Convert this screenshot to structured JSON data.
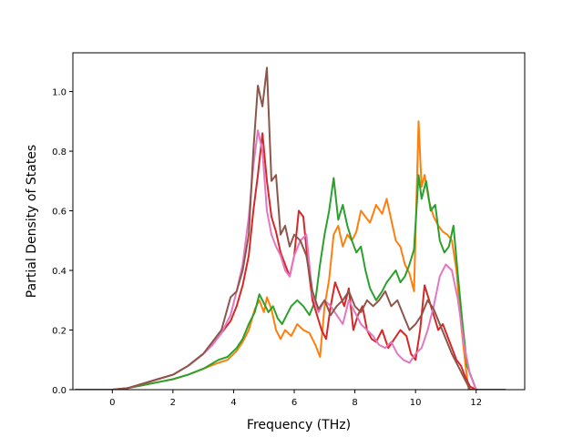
{
  "chart_data": {
    "type": "line",
    "title": "",
    "xlabel": "Frequency (THz)",
    "ylabel": "Partial Density of States",
    "xlim": [
      -1.3,
      13.6
    ],
    "ylim": [
      0.0,
      1.13
    ],
    "xticks": [
      0,
      2,
      4,
      6,
      8,
      10,
      12
    ],
    "xtick_labels": [
      "0",
      "2",
      "4",
      "6",
      "8",
      "10",
      "12"
    ],
    "yticks": [
      0.0,
      0.2,
      0.4,
      0.6,
      0.8,
      1.0
    ],
    "ytick_labels": [
      "0.0",
      "0.2",
      "0.4",
      "0.6",
      "0.8",
      "1.0"
    ],
    "grid": false,
    "legend": "none",
    "series": [
      {
        "color": "#ff7f0e",
        "x": [
          -1.2,
          0.0,
          0.5,
          1.0,
          1.5,
          2.0,
          2.5,
          3.0,
          3.5,
          3.8,
          4.1,
          4.3,
          4.5,
          4.7,
          4.85,
          5.0,
          5.1,
          5.25,
          5.4,
          5.55,
          5.7,
          5.9,
          6.1,
          6.3,
          6.5,
          6.7,
          6.85,
          7.0,
          7.15,
          7.3,
          7.45,
          7.6,
          7.75,
          7.9,
          8.05,
          8.2,
          8.35,
          8.5,
          8.7,
          8.9,
          9.05,
          9.2,
          9.35,
          9.5,
          9.65,
          9.8,
          9.95,
          10.1,
          10.2,
          10.3,
          10.45,
          10.6,
          10.75,
          10.9,
          11.05,
          11.2,
          11.35,
          11.5,
          11.65,
          11.75,
          12.0,
          12.95
        ],
        "y": [
          0.0,
          0.0,
          0.005,
          0.015,
          0.025,
          0.035,
          0.05,
          0.07,
          0.09,
          0.1,
          0.13,
          0.16,
          0.2,
          0.27,
          0.3,
          0.26,
          0.31,
          0.27,
          0.2,
          0.17,
          0.2,
          0.18,
          0.22,
          0.2,
          0.19,
          0.15,
          0.11,
          0.28,
          0.37,
          0.52,
          0.55,
          0.48,
          0.52,
          0.5,
          0.53,
          0.6,
          0.58,
          0.56,
          0.62,
          0.59,
          0.64,
          0.57,
          0.5,
          0.48,
          0.42,
          0.39,
          0.33,
          0.9,
          0.68,
          0.72,
          0.63,
          0.58,
          0.55,
          0.53,
          0.52,
          0.5,
          0.4,
          0.22,
          0.08,
          0.0,
          0.0,
          0.0
        ]
      },
      {
        "color": "#2ca02c",
        "x": [
          -1.2,
          0.0,
          0.5,
          1.0,
          1.5,
          2.0,
          2.5,
          3.0,
          3.5,
          3.8,
          4.1,
          4.3,
          4.5,
          4.7,
          4.85,
          5.0,
          5.15,
          5.3,
          5.45,
          5.6,
          5.75,
          5.9,
          6.1,
          6.3,
          6.5,
          6.7,
          6.85,
          7.0,
          7.15,
          7.3,
          7.45,
          7.6,
          7.75,
          7.9,
          8.05,
          8.2,
          8.35,
          8.5,
          8.7,
          8.9,
          9.05,
          9.2,
          9.35,
          9.5,
          9.65,
          9.8,
          9.95,
          10.1,
          10.2,
          10.35,
          10.5,
          10.65,
          10.8,
          10.95,
          11.1,
          11.25,
          11.4,
          11.55,
          11.7,
          12.0,
          12.95
        ],
        "y": [
          0.0,
          0.0,
          0.005,
          0.015,
          0.025,
          0.035,
          0.05,
          0.07,
          0.1,
          0.11,
          0.14,
          0.17,
          0.22,
          0.26,
          0.32,
          0.29,
          0.26,
          0.28,
          0.24,
          0.22,
          0.25,
          0.28,
          0.3,
          0.28,
          0.25,
          0.3,
          0.42,
          0.52,
          0.6,
          0.71,
          0.57,
          0.62,
          0.55,
          0.5,
          0.46,
          0.48,
          0.4,
          0.34,
          0.3,
          0.33,
          0.36,
          0.38,
          0.4,
          0.36,
          0.38,
          0.42,
          0.47,
          0.72,
          0.64,
          0.7,
          0.6,
          0.62,
          0.5,
          0.46,
          0.48,
          0.55,
          0.38,
          0.22,
          0.08,
          0.0,
          0.0
        ]
      },
      {
        "color": "#d62728",
        "x": [
          -1.2,
          0.0,
          0.5,
          1.0,
          1.5,
          2.0,
          2.5,
          3.0,
          3.3,
          3.6,
          3.9,
          4.1,
          4.3,
          4.5,
          4.65,
          4.8,
          4.95,
          5.1,
          5.25,
          5.4,
          5.55,
          5.7,
          5.85,
          6.0,
          6.15,
          6.3,
          6.45,
          6.6,
          6.75,
          6.9,
          7.05,
          7.2,
          7.35,
          7.5,
          7.65,
          7.8,
          7.95,
          8.1,
          8.25,
          8.4,
          8.55,
          8.7,
          8.9,
          9.1,
          9.3,
          9.5,
          9.7,
          9.85,
          10.0,
          10.15,
          10.3,
          10.45,
          10.6,
          10.75,
          10.9,
          11.05,
          11.2,
          11.35,
          11.5,
          11.65,
          11.8,
          12.0,
          12.95
        ],
        "y": [
          0.0,
          0.0,
          0.005,
          0.02,
          0.035,
          0.05,
          0.08,
          0.12,
          0.15,
          0.19,
          0.23,
          0.28,
          0.35,
          0.45,
          0.6,
          0.72,
          0.86,
          0.7,
          0.58,
          0.53,
          0.46,
          0.42,
          0.38,
          0.45,
          0.6,
          0.58,
          0.42,
          0.3,
          0.25,
          0.2,
          0.17,
          0.28,
          0.36,
          0.32,
          0.28,
          0.34,
          0.2,
          0.25,
          0.28,
          0.2,
          0.17,
          0.16,
          0.2,
          0.14,
          0.17,
          0.2,
          0.18,
          0.12,
          0.1,
          0.2,
          0.35,
          0.3,
          0.25,
          0.2,
          0.22,
          0.18,
          0.14,
          0.1,
          0.08,
          0.04,
          0.01,
          0.0,
          0.0
        ]
      },
      {
        "color": "#e377c2",
        "x": [
          -1.2,
          0.0,
          0.5,
          1.0,
          1.5,
          2.0,
          2.5,
          3.0,
          3.3,
          3.6,
          3.9,
          4.1,
          4.3,
          4.5,
          4.65,
          4.8,
          4.95,
          5.1,
          5.25,
          5.4,
          5.55,
          5.7,
          5.85,
          6.0,
          6.2,
          6.4,
          6.6,
          6.8,
          7.0,
          7.2,
          7.4,
          7.6,
          7.8,
          8.0,
          8.2,
          8.4,
          8.6,
          8.8,
          9.0,
          9.2,
          9.4,
          9.6,
          9.8,
          10.0,
          10.2,
          10.4,
          10.6,
          10.8,
          11.0,
          11.2,
          11.4,
          11.6,
          11.8,
          12.0,
          12.95
        ],
        "y": [
          0.0,
          0.0,
          0.005,
          0.02,
          0.035,
          0.05,
          0.08,
          0.12,
          0.15,
          0.19,
          0.25,
          0.33,
          0.42,
          0.58,
          0.75,
          0.87,
          0.8,
          0.6,
          0.52,
          0.48,
          0.45,
          0.4,
          0.38,
          0.45,
          0.5,
          0.52,
          0.32,
          0.26,
          0.3,
          0.28,
          0.25,
          0.22,
          0.3,
          0.26,
          0.22,
          0.2,
          0.18,
          0.15,
          0.14,
          0.16,
          0.12,
          0.1,
          0.09,
          0.12,
          0.14,
          0.2,
          0.28,
          0.38,
          0.42,
          0.4,
          0.3,
          0.15,
          0.05,
          0.0,
          0.0
        ]
      },
      {
        "color": "#8c564b",
        "x": [
          -1.2,
          0.0,
          0.5,
          1.0,
          1.5,
          2.0,
          2.5,
          3.0,
          3.3,
          3.6,
          3.9,
          4.1,
          4.3,
          4.5,
          4.65,
          4.8,
          4.95,
          5.1,
          5.25,
          5.4,
          5.55,
          5.7,
          5.85,
          6.0,
          6.2,
          6.4,
          6.6,
          6.8,
          7.0,
          7.2,
          7.4,
          7.6,
          7.8,
          8.0,
          8.2,
          8.4,
          8.6,
          8.8,
          9.0,
          9.2,
          9.4,
          9.6,
          9.8,
          10.0,
          10.2,
          10.4,
          10.6,
          10.8,
          11.0,
          11.2,
          11.4,
          11.6,
          11.8,
          12.0,
          12.95
        ],
        "y": [
          0.0,
          0.0,
          0.005,
          0.02,
          0.035,
          0.05,
          0.08,
          0.12,
          0.16,
          0.2,
          0.31,
          0.33,
          0.4,
          0.52,
          0.8,
          1.02,
          0.95,
          1.08,
          0.7,
          0.72,
          0.52,
          0.55,
          0.48,
          0.52,
          0.5,
          0.45,
          0.33,
          0.27,
          0.3,
          0.25,
          0.28,
          0.3,
          0.33,
          0.28,
          0.26,
          0.3,
          0.28,
          0.3,
          0.33,
          0.28,
          0.3,
          0.25,
          0.2,
          0.22,
          0.25,
          0.3,
          0.27,
          0.22,
          0.17,
          0.12,
          0.08,
          0.04,
          0.0,
          0.0,
          0.0
        ]
      }
    ]
  }
}
